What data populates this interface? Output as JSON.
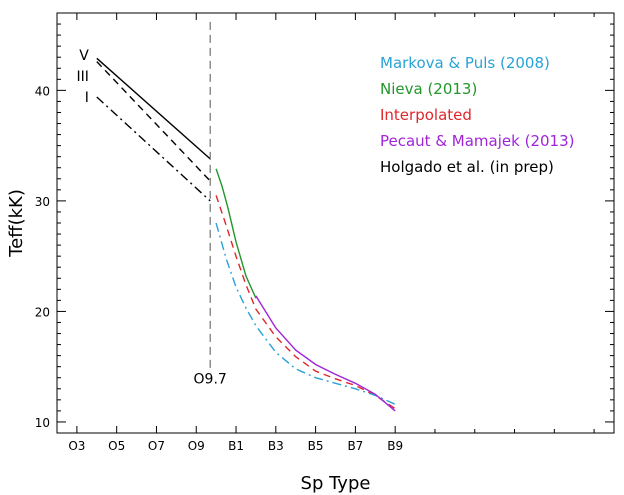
{
  "chart_data": {
    "type": "line",
    "xlabel": "Sp Type",
    "ylabel": "Teff(kK)",
    "xlim": [
      2,
      30
    ],
    "ylim": [
      9,
      47
    ],
    "x_ticks": [
      {
        "pos": 3,
        "label": "O3"
      },
      {
        "pos": 5,
        "label": "O5"
      },
      {
        "pos": 7,
        "label": "O7"
      },
      {
        "pos": 9,
        "label": "O9"
      },
      {
        "pos": 11,
        "label": "B1"
      },
      {
        "pos": 13,
        "label": "B3"
      },
      {
        "pos": 15,
        "label": "B5"
      },
      {
        "pos": 17,
        "label": "B7"
      },
      {
        "pos": 19,
        "label": "B9"
      }
    ],
    "y_ticks": [
      10,
      20,
      30,
      40
    ],
    "vline": {
      "x": 9.7,
      "label": "O9.7"
    },
    "legend": [
      {
        "text": "Markova & Puls (2008)",
        "color": "#29a3d6"
      },
      {
        "text": "Nieva (2013)",
        "color": "#22962a"
      },
      {
        "text": "Interpolated",
        "color": "#e0262b"
      },
      {
        "text": "Pecaut & Mamajek (2013)",
        "color": "#a024d8"
      },
      {
        "text": "Holgado et al. (in prep)",
        "color": "#000000"
      }
    ],
    "class_labels": [
      {
        "text": "V",
        "x": 3.6,
        "y": 43.2
      },
      {
        "text": "III",
        "x": 3.6,
        "y": 41.3
      },
      {
        "text": "I",
        "x": 3.6,
        "y": 39.4
      }
    ],
    "series": [
      {
        "name": "Holgado et al. (in prep)",
        "dash": "solid",
        "color": "#000000",
        "x": [
          4,
          9.7
        ],
        "y": [
          42.9,
          33.8
        ]
      },
      {
        "name": "Holgado et al. (in prep)",
        "dash": "dashed",
        "color": "#000000",
        "x": [
          4,
          9.7
        ],
        "y": [
          42.6,
          31.8
        ]
      },
      {
        "name": "Holgado et al. (in prep)",
        "dash": "dashdot",
        "color": "#000000",
        "x": [
          4,
          9.7
        ],
        "y": [
          39.4,
          30.0
        ]
      },
      {
        "name": "Nieva (2013)",
        "dash": "solid",
        "color": "#22962a",
        "x": [
          10,
          10.3,
          10.6,
          11,
          11.5,
          12
        ],
        "y": [
          32.9,
          31.3,
          29.3,
          26.3,
          23.2,
          21.2
        ]
      },
      {
        "name": "Interpolated",
        "dash": "dashed",
        "color": "#e0262b",
        "x": [
          10,
          10.5,
          11,
          11.5,
          12,
          13,
          14,
          15,
          16,
          17,
          18,
          19
        ],
        "y": [
          30.5,
          27.8,
          25.0,
          22.4,
          20.2,
          17.7,
          15.9,
          14.6,
          13.9,
          13.3,
          12.4,
          11.2
        ]
      },
      {
        "name": "Markova & Puls (2008)",
        "dash": "dashdot",
        "color": "#29a3d6",
        "x": [
          10,
          10.5,
          11,
          11.5,
          12,
          13,
          14,
          15,
          16,
          17,
          18,
          19
        ],
        "y": [
          28.0,
          24.8,
          22.2,
          20.3,
          18.7,
          16.3,
          14.8,
          14.0,
          13.5,
          13.0,
          12.4,
          11.6
        ]
      },
      {
        "name": "Pecaut & Mamajek (2013)",
        "dash": "solid",
        "color": "#a024d8",
        "x": [
          12,
          13,
          14,
          15,
          16,
          17,
          18,
          19
        ],
        "y": [
          21.4,
          18.5,
          16.5,
          15.2,
          14.3,
          13.5,
          12.5,
          11.0
        ]
      }
    ]
  }
}
